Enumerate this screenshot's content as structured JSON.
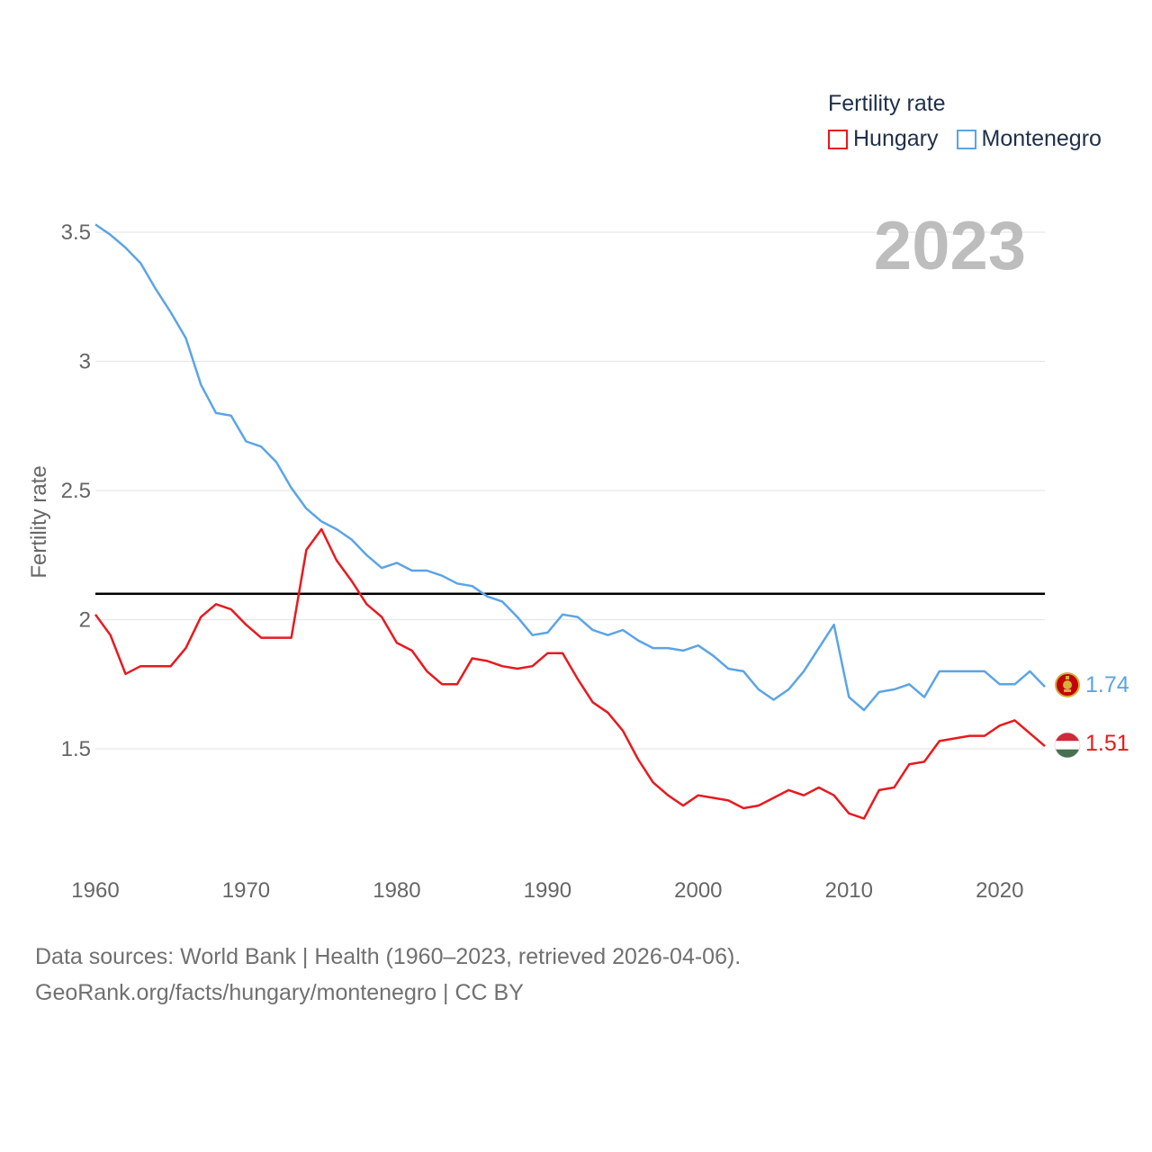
{
  "chart_data": {
    "type": "line",
    "title": "Fertility rate",
    "year_label": "2023",
    "ylabel": "Fertility rate",
    "xlabel": "",
    "xlim": [
      1960,
      2023
    ],
    "ylim": [
      1.0,
      3.6
    ],
    "x_ticks": [
      1960,
      1970,
      1980,
      1990,
      2000,
      2010,
      2020
    ],
    "y_ticks": [
      1.5,
      2,
      2.5,
      3,
      3.5
    ],
    "y_tick_labels": [
      "1.5",
      "2",
      "2.5",
      "3",
      "3.5"
    ],
    "reference_line": 2.1,
    "legend_title": "Fertility rate",
    "x": [
      1960,
      1961,
      1962,
      1963,
      1964,
      1965,
      1966,
      1967,
      1968,
      1969,
      1970,
      1971,
      1972,
      1973,
      1974,
      1975,
      1976,
      1977,
      1978,
      1979,
      1980,
      1981,
      1982,
      1983,
      1984,
      1985,
      1986,
      1987,
      1988,
      1989,
      1990,
      1991,
      1992,
      1993,
      1994,
      1995,
      1996,
      1997,
      1998,
      1999,
      2000,
      2001,
      2002,
      2003,
      2004,
      2005,
      2006,
      2007,
      2008,
      2009,
      2010,
      2011,
      2012,
      2013,
      2014,
      2015,
      2016,
      2017,
      2018,
      2019,
      2020,
      2021,
      2022,
      2023
    ],
    "series": [
      {
        "name": "Hungary",
        "color": "#e8191e",
        "end_label": "1.51",
        "flag": "hungary-flag",
        "values": [
          2.02,
          1.94,
          1.79,
          1.82,
          1.82,
          1.82,
          1.89,
          2.01,
          2.06,
          2.04,
          1.98,
          1.93,
          1.93,
          1.93,
          2.27,
          2.35,
          2.23,
          2.15,
          2.06,
          2.01,
          1.91,
          1.88,
          1.8,
          1.75,
          1.75,
          1.85,
          1.84,
          1.82,
          1.81,
          1.82,
          1.87,
          1.87,
          1.77,
          1.68,
          1.64,
          1.57,
          1.46,
          1.37,
          1.32,
          1.28,
          1.32,
          1.31,
          1.3,
          1.27,
          1.28,
          1.31,
          1.34,
          1.32,
          1.35,
          1.32,
          1.25,
          1.23,
          1.34,
          1.35,
          1.44,
          1.45,
          1.53,
          1.54,
          1.55,
          1.55,
          1.59,
          1.61,
          1.56,
          1.51
        ]
      },
      {
        "name": "Montenegro",
        "color": "#5ba4e6",
        "end_label": "1.74",
        "flag": "montenegro-flag",
        "values": [
          3.53,
          3.49,
          3.44,
          3.38,
          3.28,
          3.19,
          3.09,
          2.91,
          2.8,
          2.79,
          2.69,
          2.67,
          2.61,
          2.51,
          2.43,
          2.38,
          2.35,
          2.31,
          2.25,
          2.2,
          2.22,
          2.19,
          2.19,
          2.17,
          2.14,
          2.13,
          2.09,
          2.07,
          2.01,
          1.94,
          1.95,
          2.02,
          2.01,
          1.96,
          1.94,
          1.96,
          1.92,
          1.89,
          1.89,
          1.88,
          1.9,
          1.86,
          1.81,
          1.8,
          1.73,
          1.69,
          1.73,
          1.8,
          1.89,
          1.98,
          1.7,
          1.65,
          1.72,
          1.73,
          1.75,
          1.7,
          1.8,
          1.8,
          1.8,
          1.8,
          1.75,
          1.75,
          1.8,
          1.74
        ]
      }
    ]
  },
  "footer": {
    "line1": "Data sources: World Bank | Health (1960–2023, retrieved 2026-04-06).",
    "line2": "GeoRank.org/facts/hungary/montenegro | CC BY"
  }
}
